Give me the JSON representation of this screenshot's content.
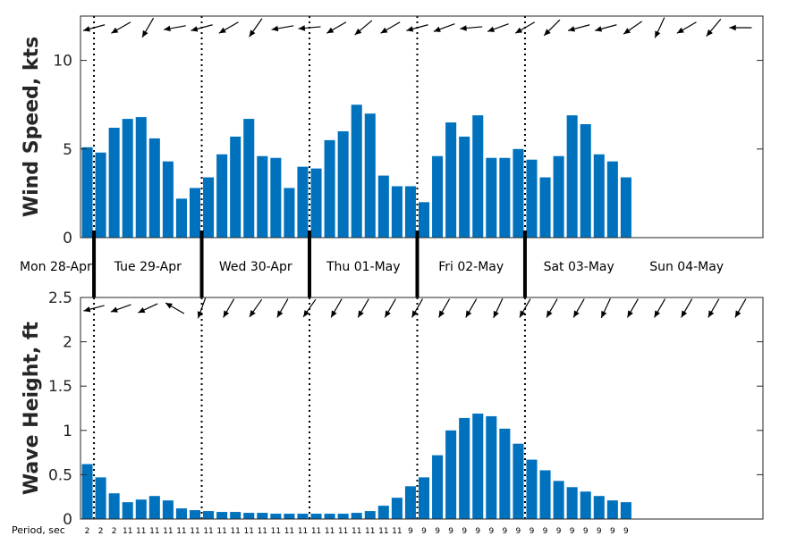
{
  "colors": {
    "bar": "#0072BD",
    "axis": "#262626",
    "arrow": "#000000"
  },
  "chart_data": [
    {
      "type": "bar",
      "ylabel": "Wind Speed, kts",
      "ylim": [
        0,
        12.5
      ],
      "yticks": [
        0,
        5,
        10
      ],
      "ytick_labels": [
        "0",
        "5",
        "10"
      ],
      "x_start_hour": 21,
      "bar_interval_hours": 3,
      "values": [
        5.1,
        4.8,
        6.2,
        6.7,
        6.8,
        5.6,
        4.3,
        2.2,
        2.8,
        3.4,
        4.7,
        5.7,
        6.7,
        4.6,
        4.5,
        2.8,
        4.0,
        3.9,
        5.5,
        6.0,
        7.5,
        7.0,
        3.5,
        2.9,
        2.9,
        2.0,
        4.6,
        6.5,
        5.7,
        6.9,
        4.5,
        4.5,
        5.0,
        4.4,
        3.4,
        4.6,
        6.9,
        6.4,
        4.7,
        4.3,
        3.4
      ],
      "arrow_x_hours": [
        24,
        30,
        36,
        42,
        48,
        54,
        60,
        66,
        72,
        78,
        84,
        90,
        96,
        102,
        108,
        114,
        120,
        126,
        132,
        138,
        144,
        150,
        156,
        162,
        168
      ],
      "direction_deg": [
        255,
        240,
        210,
        260,
        255,
        240,
        215,
        260,
        265,
        240,
        230,
        240,
        255,
        250,
        265,
        250,
        240,
        225,
        255,
        255,
        235,
        205,
        240,
        220,
        270
      ],
      "grid": false
    },
    {
      "type": "bar",
      "ylabel": "Wave Height, ft",
      "ylim": [
        0,
        2.5
      ],
      "yticks": [
        0,
        0.5,
        1,
        1.5,
        2,
        2.5
      ],
      "ytick_labels": [
        "0",
        "0.5",
        "1",
        "1.5",
        "2",
        "2.5"
      ],
      "x_start_hour": 21,
      "bar_interval_hours": 3,
      "values": [
        0.62,
        0.47,
        0.29,
        0.19,
        0.22,
        0.26,
        0.21,
        0.12,
        0.1,
        0.09,
        0.08,
        0.08,
        0.07,
        0.07,
        0.06,
        0.06,
        0.06,
        0.06,
        0.06,
        0.06,
        0.07,
        0.09,
        0.15,
        0.24,
        0.37,
        0.47,
        0.72,
        1.0,
        1.14,
        1.19,
        1.16,
        1.02,
        0.85,
        0.67,
        0.55,
        0.43,
        0.36,
        0.31,
        0.26,
        0.21,
        0.19
      ],
      "arrow_x_hours": [
        24,
        30,
        36,
        42,
        48,
        54,
        60,
        66,
        72,
        78,
        84,
        90,
        96,
        102,
        108,
        114,
        120,
        126,
        132,
        138,
        144,
        150,
        156,
        162,
        168
      ],
      "direction_deg": [
        255,
        250,
        245,
        300,
        200,
        210,
        215,
        210,
        215,
        210,
        210,
        210,
        210,
        210,
        210,
        205,
        210,
        210,
        210,
        205,
        210,
        210,
        210,
        210,
        210
      ],
      "grid": false
    }
  ],
  "days": {
    "midnight_hours": [
      24,
      48,
      72,
      96,
      120
    ],
    "labels": [
      "Mon 28-Apr",
      "Tue 29-Apr",
      "Wed 30-Apr",
      "Thu 01-May",
      "Fri 02-May",
      "Sat 03-May",
      "Sun 04-May"
    ],
    "label_hours": [
      0,
      36,
      60,
      84,
      108,
      132,
      156
    ],
    "separator_hours": [
      24,
      48,
      72,
      96,
      120
    ]
  },
  "period": {
    "title": "Period, sec",
    "values": [
      "2",
      "2",
      "2",
      "11",
      "11",
      "11",
      "11",
      "11",
      "11",
      "11",
      "11",
      "11",
      "11",
      "11",
      "11",
      "11",
      "11",
      "11",
      "11",
      "11",
      "11",
      "11",
      "11",
      "11",
      "9",
      "9",
      "9",
      "9",
      "9",
      "9",
      "9",
      "9",
      "9",
      "9",
      "9",
      "9",
      "9",
      "9",
      "9",
      "9",
      "9"
    ]
  }
}
